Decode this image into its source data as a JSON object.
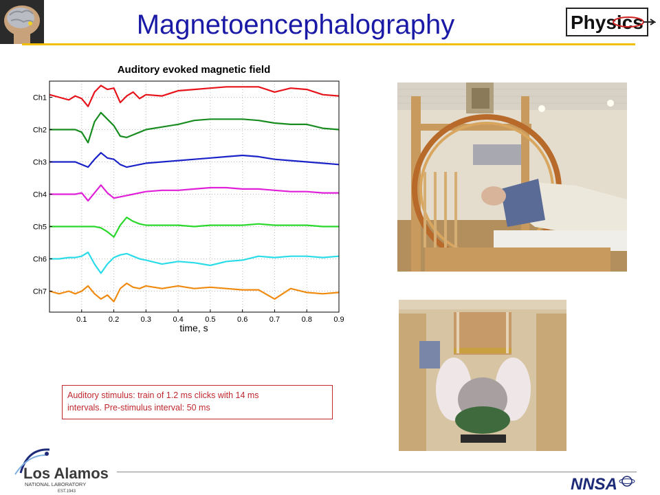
{
  "header": {
    "title": "Magnetoencephalography",
    "physics_logo_text": "Physics"
  },
  "colors": {
    "title": "#1a1aa6",
    "rule": "#f2c000",
    "caption": "#c0272d"
  },
  "chart_data": {
    "type": "line",
    "title": "Auditory evoked magnetic field",
    "xlabel": "time, s",
    "ylabel": "",
    "xlim": [
      0,
      0.9
    ],
    "x_ticks": [
      "0.1",
      "0.2",
      "0.3",
      "0.4",
      "0.5",
      "0.6",
      "0.7",
      "0.8",
      "0.9"
    ],
    "y_categories": [
      "Ch1",
      "Ch2",
      "Ch3",
      "Ch4",
      "Ch5",
      "Ch6",
      "Ch7"
    ],
    "grid": true,
    "x": [
      0,
      0.03,
      0.06,
      0.08,
      0.1,
      0.12,
      0.14,
      0.16,
      0.18,
      0.2,
      0.22,
      0.24,
      0.26,
      0.28,
      0.3,
      0.35,
      0.4,
      0.45,
      0.5,
      0.55,
      0.6,
      0.65,
      0.7,
      0.75,
      0.8,
      0.85,
      0.9
    ],
    "series": [
      {
        "name": "Ch1",
        "color": "#e8121a",
        "values": [
          0.1,
          0,
          -0.1,
          0.05,
          -0.05,
          -0.35,
          0.2,
          0.45,
          0.3,
          0.35,
          -0.2,
          0.05,
          0.2,
          -0.05,
          0.1,
          0.05,
          0.25,
          0.3,
          0.35,
          0.4,
          0.4,
          0.4,
          0.2,
          0.35,
          0.3,
          0.1,
          0.05
        ]
      },
      {
        "name": "Ch2",
        "color": "#178c1f",
        "values": [
          0,
          0,
          0,
          0,
          -0.1,
          -0.5,
          0.3,
          0.65,
          0.4,
          0.15,
          -0.25,
          -0.3,
          -0.2,
          -0.1,
          0,
          0.1,
          0.2,
          0.35,
          0.4,
          0.4,
          0.4,
          0.35,
          0.25,
          0.2,
          0.2,
          0.05,
          0
        ]
      },
      {
        "name": "Ch3",
        "color": "#1a22c8",
        "values": [
          0,
          0,
          0,
          0,
          -0.1,
          -0.2,
          0.1,
          0.35,
          0.15,
          0.1,
          -0.1,
          -0.2,
          -0.15,
          -0.1,
          -0.05,
          0,
          0.05,
          0.1,
          0.15,
          0.2,
          0.25,
          0.2,
          0.1,
          0.05,
          0,
          -0.05,
          -0.1
        ]
      },
      {
        "name": "Ch4",
        "color": "#e020d8",
        "values": [
          0,
          0,
          0,
          0,
          0.05,
          -0.25,
          0.05,
          0.35,
          0.05,
          -0.15,
          -0.1,
          -0.05,
          0,
          0.05,
          0.1,
          0.15,
          0.15,
          0.2,
          0.25,
          0.25,
          0.2,
          0.2,
          0.15,
          0.1,
          0.1,
          0.05,
          0.05
        ]
      },
      {
        "name": "Ch5",
        "color": "#29d82a",
        "values": [
          0,
          0,
          0,
          0,
          0,
          0,
          0,
          -0.05,
          -0.2,
          -0.4,
          0.05,
          0.35,
          0.2,
          0.1,
          0.05,
          0.05,
          0.05,
          0,
          0.05,
          0.05,
          0.05,
          0.1,
          0.05,
          0.05,
          0.05,
          0,
          0
        ]
      },
      {
        "name": "Ch6",
        "color": "#2adce8",
        "values": [
          0,
          0,
          0.05,
          0.05,
          0.1,
          0.25,
          -0.2,
          -0.55,
          -0.2,
          0.05,
          0.15,
          0.2,
          0.1,
          0,
          -0.05,
          -0.2,
          -0.1,
          -0.15,
          -0.25,
          -0.1,
          -0.05,
          0.1,
          0.05,
          0.1,
          0.1,
          0.05,
          0.1
        ]
      },
      {
        "name": "Ch7",
        "color": "#f08a0f",
        "values": [
          0,
          -0.1,
          0,
          -0.1,
          0,
          0.2,
          -0.1,
          -0.3,
          -0.15,
          -0.4,
          0.1,
          0.3,
          0.15,
          0.1,
          0.2,
          0.1,
          0.2,
          0.1,
          0.15,
          0.1,
          0.05,
          0.05,
          -0.3,
          0.1,
          -0.05,
          -0.1,
          -0.05
        ]
      }
    ]
  },
  "caption": {
    "line1": "Auditory stimulus: train of 1.2 ms clicks with 14 ms",
    "line2": "intervals. Pre-stimulus interval: 50 ms"
  },
  "footer": {
    "lanl_name": "Los Alamos",
    "lanl_sub": "NATIONAL LABORATORY",
    "lanl_est": "EST.1943",
    "nnsa_text": "NNSA"
  }
}
